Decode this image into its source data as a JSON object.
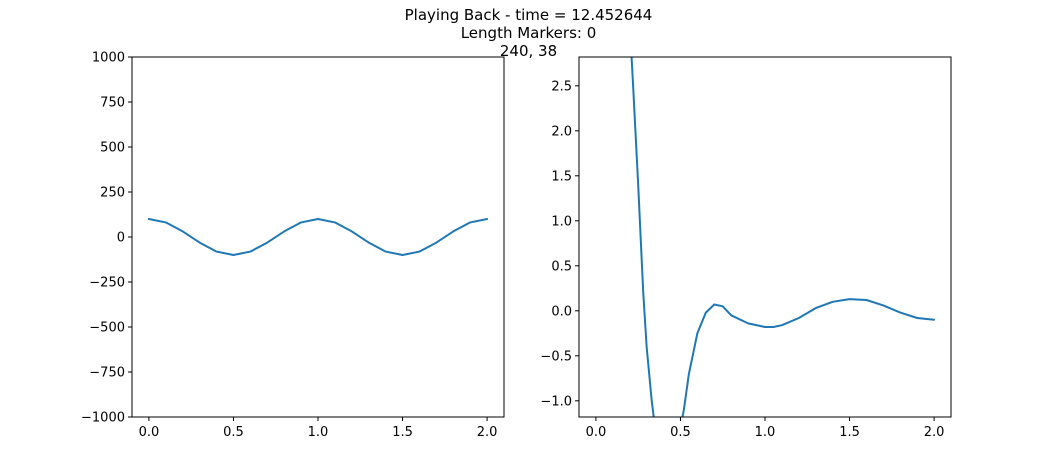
{
  "figure": {
    "title_lines": [
      "Playing Back - time = 12.452644",
      "Length Markers: 0",
      "240, 38"
    ]
  },
  "chart_data": [
    {
      "type": "line",
      "xlim": [
        -0.1,
        2.1
      ],
      "ylim": [
        -1000,
        1000
      ],
      "xticks": [
        0.0,
        0.5,
        1.0,
        1.5,
        2.0
      ],
      "xtick_labels": [
        "0.0",
        "0.5",
        "1.0",
        "1.5",
        "2.0"
      ],
      "yticks": [
        -1000,
        -750,
        -500,
        -250,
        0,
        250,
        500,
        750,
        1000
      ],
      "ytick_labels": [
        "−1000",
        "−750",
        "−500",
        "−250",
        "0",
        "250",
        "500",
        "750",
        "1000"
      ],
      "grid": false,
      "series": [
        {
          "color": "#1f77b4",
          "x": [
            0.0,
            0.1,
            0.2,
            0.3,
            0.4,
            0.5,
            0.6,
            0.7,
            0.8,
            0.9,
            1.0,
            1.1,
            1.2,
            1.3,
            1.4,
            1.5,
            1.6,
            1.7,
            1.8,
            1.9,
            2.0
          ],
          "y": [
            100,
            81,
            31,
            -31,
            -81,
            -100,
            -81,
            -31,
            31,
            81,
            100,
            81,
            31,
            -31,
            -81,
            -100,
            -81,
            -31,
            31,
            81,
            100
          ]
        }
      ]
    },
    {
      "type": "line",
      "xlim": [
        -0.1,
        2.1
      ],
      "ylim": [
        -1.18,
        2.82
      ],
      "xticks": [
        0.0,
        0.5,
        1.0,
        1.5,
        2.0
      ],
      "xtick_labels": [
        "0.0",
        "0.5",
        "1.0",
        "1.5",
        "2.0"
      ],
      "yticks": [
        -1.0,
        -0.5,
        0.0,
        0.5,
        1.0,
        1.5,
        2.0,
        2.5
      ],
      "ytick_labels": [
        "−1.0",
        "−0.5",
        "0.0",
        "0.5",
        "1.0",
        "1.5",
        "2.0",
        "2.5"
      ],
      "grid": false,
      "series": [
        {
          "color": "#1f77b4",
          "x": [
            0.2,
            0.22,
            0.25,
            0.28,
            0.3,
            0.33,
            0.34,
            0.35,
            0.5,
            0.52,
            0.55,
            0.6,
            0.65,
            0.7,
            0.75,
            0.8,
            0.9,
            1.0,
            1.05,
            1.1,
            1.2,
            1.3,
            1.4,
            1.5,
            1.6,
            1.7,
            1.8,
            1.9,
            2.0
          ],
          "y": [
            3.2,
            2.5,
            1.4,
            0.2,
            -0.4,
            -1.0,
            -1.15,
            -1.3,
            -1.3,
            -1.1,
            -0.7,
            -0.25,
            -0.02,
            0.07,
            0.05,
            -0.05,
            -0.14,
            -0.18,
            -0.18,
            -0.16,
            -0.08,
            0.03,
            0.1,
            0.13,
            0.12,
            0.06,
            -0.02,
            -0.08,
            -0.1
          ]
        }
      ]
    }
  ]
}
